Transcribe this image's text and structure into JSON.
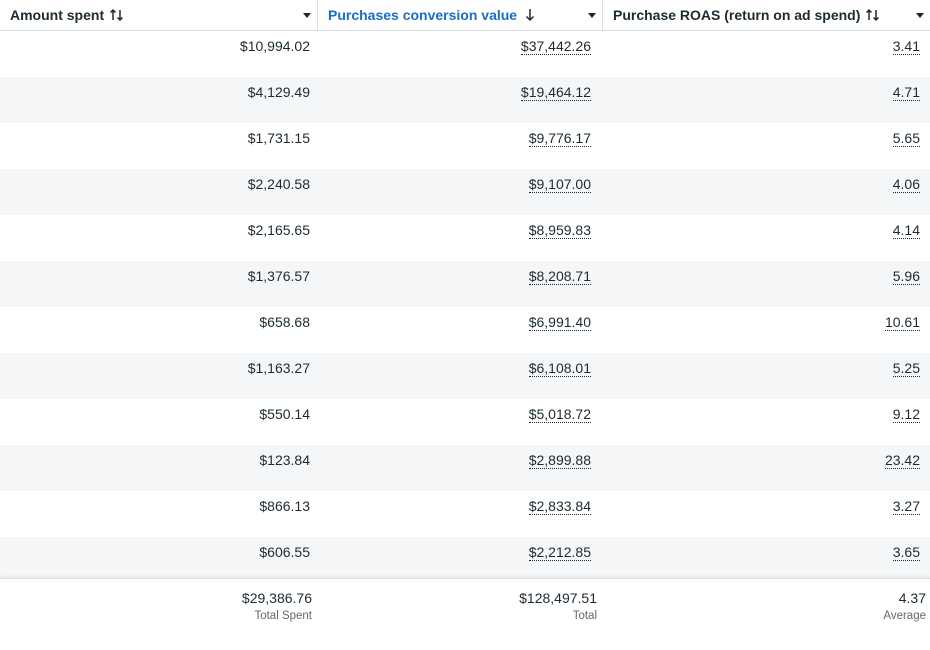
{
  "header": {
    "amount_spent": "Amount spent",
    "conversion_value": "Purchases conversion value",
    "roas": "Purchase ROAS (return on ad spend)"
  },
  "colors": {
    "active_header": "#1a6ec2",
    "alt_row": "#f5f6f7",
    "border": "#d9dde1"
  },
  "rows": [
    {
      "spent": "$10,994.02",
      "value": "$37,442.26",
      "roas": "3.41"
    },
    {
      "spent": "$4,129.49",
      "value": "$19,464.12",
      "roas": "4.71"
    },
    {
      "spent": "$1,731.15",
      "value": "$9,776.17",
      "roas": "5.65"
    },
    {
      "spent": "$2,240.58",
      "value": "$9,107.00",
      "roas": "4.06"
    },
    {
      "spent": "$2,165.65",
      "value": "$8,959.83",
      "roas": "4.14"
    },
    {
      "spent": "$1,376.57",
      "value": "$8,208.71",
      "roas": "5.96"
    },
    {
      "spent": "$658.68",
      "value": "$6,991.40",
      "roas": "10.61"
    },
    {
      "spent": "$1,163.27",
      "value": "$6,108.01",
      "roas": "5.25"
    },
    {
      "spent": "$550.14",
      "value": "$5,018.72",
      "roas": "9.12"
    },
    {
      "spent": "$123.84",
      "value": "$2,899.88",
      "roas": "23.42"
    },
    {
      "spent": "$866.13",
      "value": "$2,833.84",
      "roas": "3.27"
    },
    {
      "spent": "$606.55",
      "value": "$2,212.85",
      "roas": "3.65"
    }
  ],
  "footer": {
    "total_spent": "$29,386.76",
    "total_spent_label": "Total Spent",
    "total_value": "$128,497.51",
    "total_value_label": "Total",
    "average_roas": "4.37",
    "average_roas_label": "Average"
  }
}
